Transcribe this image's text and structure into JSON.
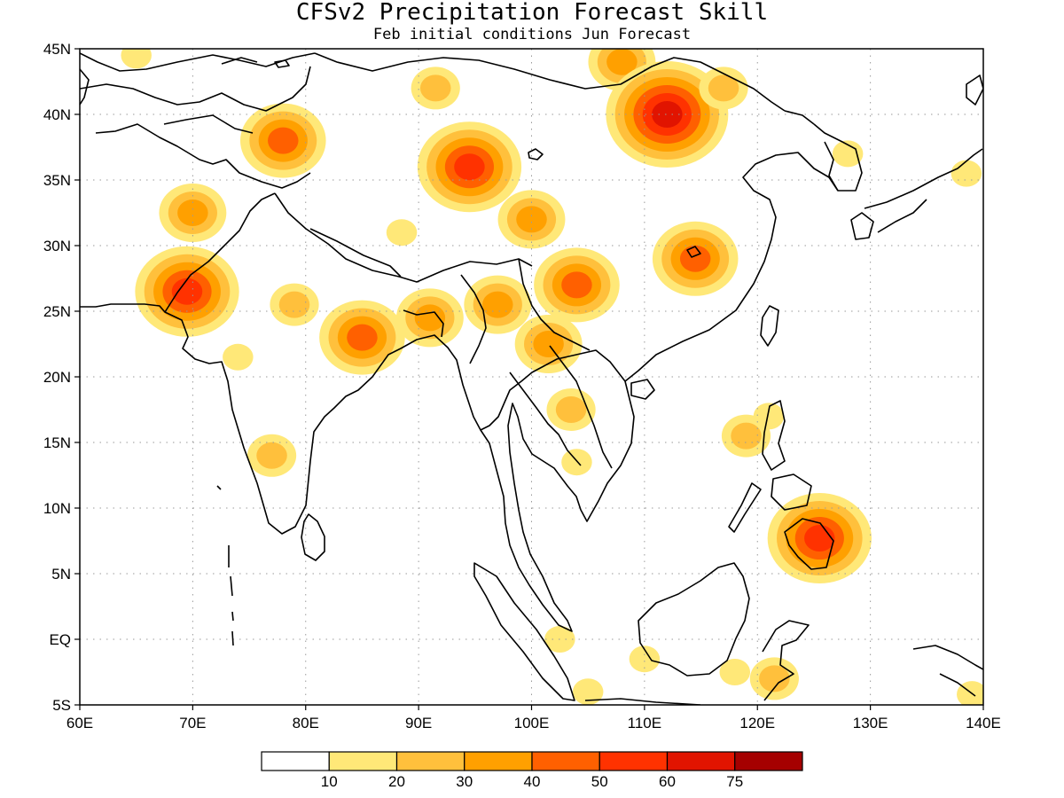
{
  "title": "CFSv2 Precipitation Forecast Skill",
  "subtitle": "Feb initial conditions  Jun Forecast",
  "map": {
    "projection": "latlon",
    "lon_range": [
      60,
      140
    ],
    "lat_range": [
      -5,
      45
    ],
    "grid": true,
    "x_ticks": [
      {
        "value": 60,
        "label": "60E"
      },
      {
        "value": 70,
        "label": "70E"
      },
      {
        "value": 80,
        "label": "80E"
      },
      {
        "value": 90,
        "label": "90E"
      },
      {
        "value": 100,
        "label": "100E"
      },
      {
        "value": 110,
        "label": "110E"
      },
      {
        "value": 120,
        "label": "120E"
      },
      {
        "value": 130,
        "label": "130E"
      },
      {
        "value": 140,
        "label": "140E"
      }
    ],
    "y_ticks": [
      {
        "value": 45,
        "label": "45N"
      },
      {
        "value": 40,
        "label": "40N"
      },
      {
        "value": 35,
        "label": "35N"
      },
      {
        "value": 30,
        "label": "30N"
      },
      {
        "value": 25,
        "label": "25N"
      },
      {
        "value": 20,
        "label": "20N"
      },
      {
        "value": 15,
        "label": "15N"
      },
      {
        "value": 10,
        "label": "10N"
      },
      {
        "value": 5,
        "label": "5N"
      },
      {
        "value": 0,
        "label": "EQ"
      },
      {
        "value": -5,
        "label": "5S"
      }
    ]
  },
  "colorbar": {
    "colors": [
      "#ffffff",
      "#ffe878",
      "#ffc03c",
      "#ffa000",
      "#ff6000",
      "#ff3200",
      "#e11400",
      "#a50000"
    ],
    "labels": [
      "10",
      "20",
      "30",
      "40",
      "50",
      "60",
      "75"
    ]
  },
  "chart_data": {
    "type": "heatmap",
    "title": "CFSv2 Precipitation Forecast Skill",
    "subtitle": "Feb initial conditions  Jun Forecast",
    "xlim": [
      60,
      140
    ],
    "ylim": [
      -5,
      45
    ],
    "levels": [
      10,
      20,
      30,
      40,
      50,
      60,
      75
    ],
    "regions": [
      {
        "lon": 69.5,
        "lat": 26.5,
        "peak": 55
      },
      {
        "lon": 70,
        "lat": 32.5,
        "peak": 35
      },
      {
        "lon": 78,
        "lat": 38,
        "peak": 42
      },
      {
        "lon": 65,
        "lat": 44.5,
        "peak": 15
      },
      {
        "lon": 74,
        "lat": 21.5,
        "peak": 12
      },
      {
        "lon": 77,
        "lat": 14,
        "peak": 25
      },
      {
        "lon": 85,
        "lat": 23,
        "peak": 40
      },
      {
        "lon": 79,
        "lat": 25.5,
        "peak": 25
      },
      {
        "lon": 91,
        "lat": 24.5,
        "peak": 30
      },
      {
        "lon": 97,
        "lat": 25.5,
        "peak": 32
      },
      {
        "lon": 94.5,
        "lat": 36,
        "peak": 50
      },
      {
        "lon": 100,
        "lat": 32,
        "peak": 35
      },
      {
        "lon": 91.5,
        "lat": 42,
        "peak": 25
      },
      {
        "lon": 108,
        "lat": 44,
        "peak": 35
      },
      {
        "lon": 112,
        "lat": 40,
        "peak": 60
      },
      {
        "lon": 117,
        "lat": 42,
        "peak": 20
      },
      {
        "lon": 114.5,
        "lat": 29,
        "peak": 40
      },
      {
        "lon": 104,
        "lat": 27,
        "peak": 45
      },
      {
        "lon": 101.5,
        "lat": 22.5,
        "peak": 30
      },
      {
        "lon": 103.5,
        "lat": 17.5,
        "peak": 20
      },
      {
        "lon": 104,
        "lat": 13.5,
        "peak": 15
      },
      {
        "lon": 102.5,
        "lat": 0,
        "peak": 15
      },
      {
        "lon": 105,
        "lat": -4,
        "peak": 12
      },
      {
        "lon": 110,
        "lat": -1.5,
        "peak": 15
      },
      {
        "lon": 118,
        "lat": -2.5,
        "peak": 15
      },
      {
        "lon": 125.5,
        "lat": 7.7,
        "peak": 52
      },
      {
        "lon": 119,
        "lat": 15.5,
        "peak": 25
      },
      {
        "lon": 138.5,
        "lat": 35.5,
        "peak": 15
      },
      {
        "lon": 139,
        "lat": -4.2,
        "peak": 15
      },
      {
        "lon": 88.5,
        "lat": 31,
        "peak": 15
      },
      {
        "lon": 121,
        "lat": 17,
        "peak": 15
      },
      {
        "lon": 121.5,
        "lat": -3,
        "peak": 20
      },
      {
        "lon": 128,
        "lat": 37,
        "peak": 12
      }
    ]
  }
}
